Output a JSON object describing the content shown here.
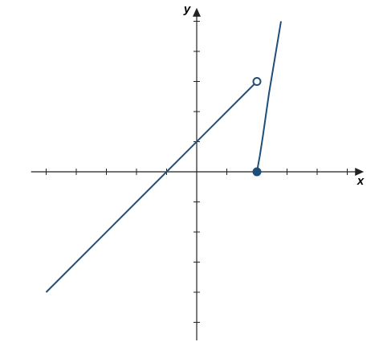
{
  "chart_data": {
    "type": "line",
    "x_label": "x",
    "y_label": "y",
    "xlim": [
      -5.5,
      5.5
    ],
    "ylim": [
      -5.6,
      5.5
    ],
    "xticks": [
      -5,
      -4,
      -3,
      -2,
      -1,
      1,
      2,
      3,
      4,
      5
    ],
    "yticks": [
      -5,
      -4,
      -3,
      -2,
      -1,
      1,
      2,
      3,
      4,
      5
    ],
    "color": "#1f4e79",
    "series": [
      {
        "x": [
          -5,
          2
        ],
        "values": [
          -4,
          3
        ]
      },
      {
        "x": [
          2,
          2.1,
          2.2,
          2.3,
          2.4,
          2.5,
          2.6,
          2.7,
          2.8
        ],
        "values": [
          0,
          0.55,
          1.2,
          1.9,
          2.6,
          3.2,
          3.8,
          4.4,
          5
        ]
      }
    ],
    "points": [
      {
        "x": 2,
        "y": 3,
        "filled": false
      },
      {
        "x": 2,
        "y": 0,
        "filled": true
      }
    ]
  }
}
